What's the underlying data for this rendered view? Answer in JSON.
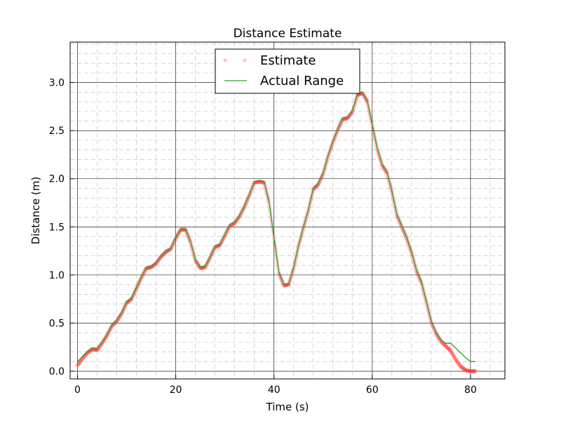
{
  "chart_data": {
    "type": "scatter",
    "title": "Distance Estimate",
    "xlabel": "Time (s)",
    "ylabel": "Distance (m)",
    "xlim": [
      -1.5,
      87
    ],
    "ylim": [
      -0.08,
      3.42
    ],
    "xticks": [
      0,
      20,
      40,
      60,
      80
    ],
    "yticks": [
      0.0,
      0.5,
      1.0,
      1.5,
      2.0,
      2.5,
      3.0
    ],
    "xtick_labels": [
      "0",
      "20",
      "40",
      "60",
      "80"
    ],
    "ytick_labels": [
      "0.0",
      "0.5",
      "1.0",
      "1.5",
      "2.0",
      "2.5",
      "3.0"
    ],
    "grid": true,
    "legend": {
      "position": "top-center"
    },
    "colors": {
      "estimate": "#ff3333",
      "actual": "#2ca02c"
    },
    "series": [
      {
        "name": "Estimate",
        "style": "points",
        "x": [
          0,
          1,
          2,
          3,
          4,
          5,
          6,
          7,
          8,
          9,
          10,
          11,
          12,
          13,
          14,
          15,
          16,
          17,
          18,
          19,
          20,
          21,
          22,
          23,
          24,
          25,
          26,
          27,
          28,
          29,
          30,
          31,
          32,
          33,
          34,
          35,
          36,
          37,
          38,
          39,
          40,
          41,
          42,
          43,
          44,
          45,
          46,
          47,
          48,
          49,
          50,
          51,
          52,
          53,
          54,
          55,
          56,
          57,
          58,
          59,
          60,
          61,
          62,
          63,
          64,
          65,
          66,
          67,
          68,
          69,
          70,
          71,
          72,
          73,
          74,
          75,
          76,
          77,
          78,
          79,
          80,
          81
        ],
        "y": [
          0.06,
          0.13,
          0.19,
          0.23,
          0.22,
          0.29,
          0.37,
          0.47,
          0.52,
          0.6,
          0.71,
          0.75,
          0.86,
          0.97,
          1.07,
          1.08,
          1.12,
          1.19,
          1.24,
          1.27,
          1.38,
          1.47,
          1.47,
          1.34,
          1.15,
          1.07,
          1.08,
          1.18,
          1.29,
          1.31,
          1.41,
          1.51,
          1.54,
          1.61,
          1.71,
          1.83,
          1.96,
          1.97,
          1.96,
          1.75,
          1.38,
          1.02,
          0.89,
          0.9,
          1.07,
          1.3,
          1.49,
          1.67,
          1.89,
          1.94,
          2.05,
          2.23,
          2.38,
          2.51,
          2.62,
          2.63,
          2.7,
          2.87,
          2.89,
          2.8,
          2.55,
          2.31,
          2.14,
          2.06,
          1.86,
          1.62,
          1.5,
          1.38,
          1.23,
          1.04,
          0.92,
          0.72,
          0.51,
          0.39,
          0.31,
          0.26,
          0.21,
          0.12,
          0.05,
          0.01,
          0.0,
          0.0
        ]
      },
      {
        "name": "Actual Range",
        "style": "line",
        "x": [
          0,
          1,
          2,
          3,
          4,
          5,
          6,
          7,
          8,
          9,
          10,
          11,
          12,
          13,
          14,
          15,
          16,
          17,
          18,
          19,
          20,
          21,
          22,
          23,
          24,
          25,
          26,
          27,
          28,
          29,
          30,
          31,
          32,
          33,
          34,
          35,
          36,
          37,
          38,
          39,
          40,
          41,
          42,
          43,
          44,
          45,
          46,
          47,
          48,
          49,
          50,
          51,
          52,
          53,
          54,
          55,
          56,
          57,
          58,
          59,
          60,
          61,
          62,
          63,
          64,
          65,
          66,
          67,
          68,
          69,
          70,
          71,
          72,
          73,
          74,
          75,
          76,
          77,
          78,
          79,
          80,
          81
        ],
        "y": [
          0.1,
          0.15,
          0.2,
          0.24,
          0.24,
          0.3,
          0.38,
          0.48,
          0.53,
          0.61,
          0.72,
          0.76,
          0.87,
          0.98,
          1.08,
          1.09,
          1.13,
          1.2,
          1.25,
          1.28,
          1.39,
          1.48,
          1.48,
          1.35,
          1.16,
          1.08,
          1.09,
          1.19,
          1.3,
          1.32,
          1.42,
          1.52,
          1.55,
          1.62,
          1.72,
          1.84,
          1.97,
          1.98,
          1.97,
          1.76,
          1.39,
          1.03,
          0.9,
          0.91,
          1.08,
          1.31,
          1.5,
          1.68,
          1.9,
          1.95,
          2.06,
          2.24,
          2.39,
          2.52,
          2.63,
          2.64,
          2.71,
          2.88,
          2.9,
          2.81,
          2.56,
          2.32,
          2.15,
          2.07,
          1.87,
          1.63,
          1.51,
          1.39,
          1.24,
          1.05,
          0.93,
          0.73,
          0.52,
          0.4,
          0.32,
          0.29,
          0.29,
          0.24,
          0.19,
          0.14,
          0.1,
          0.1
        ]
      }
    ]
  }
}
